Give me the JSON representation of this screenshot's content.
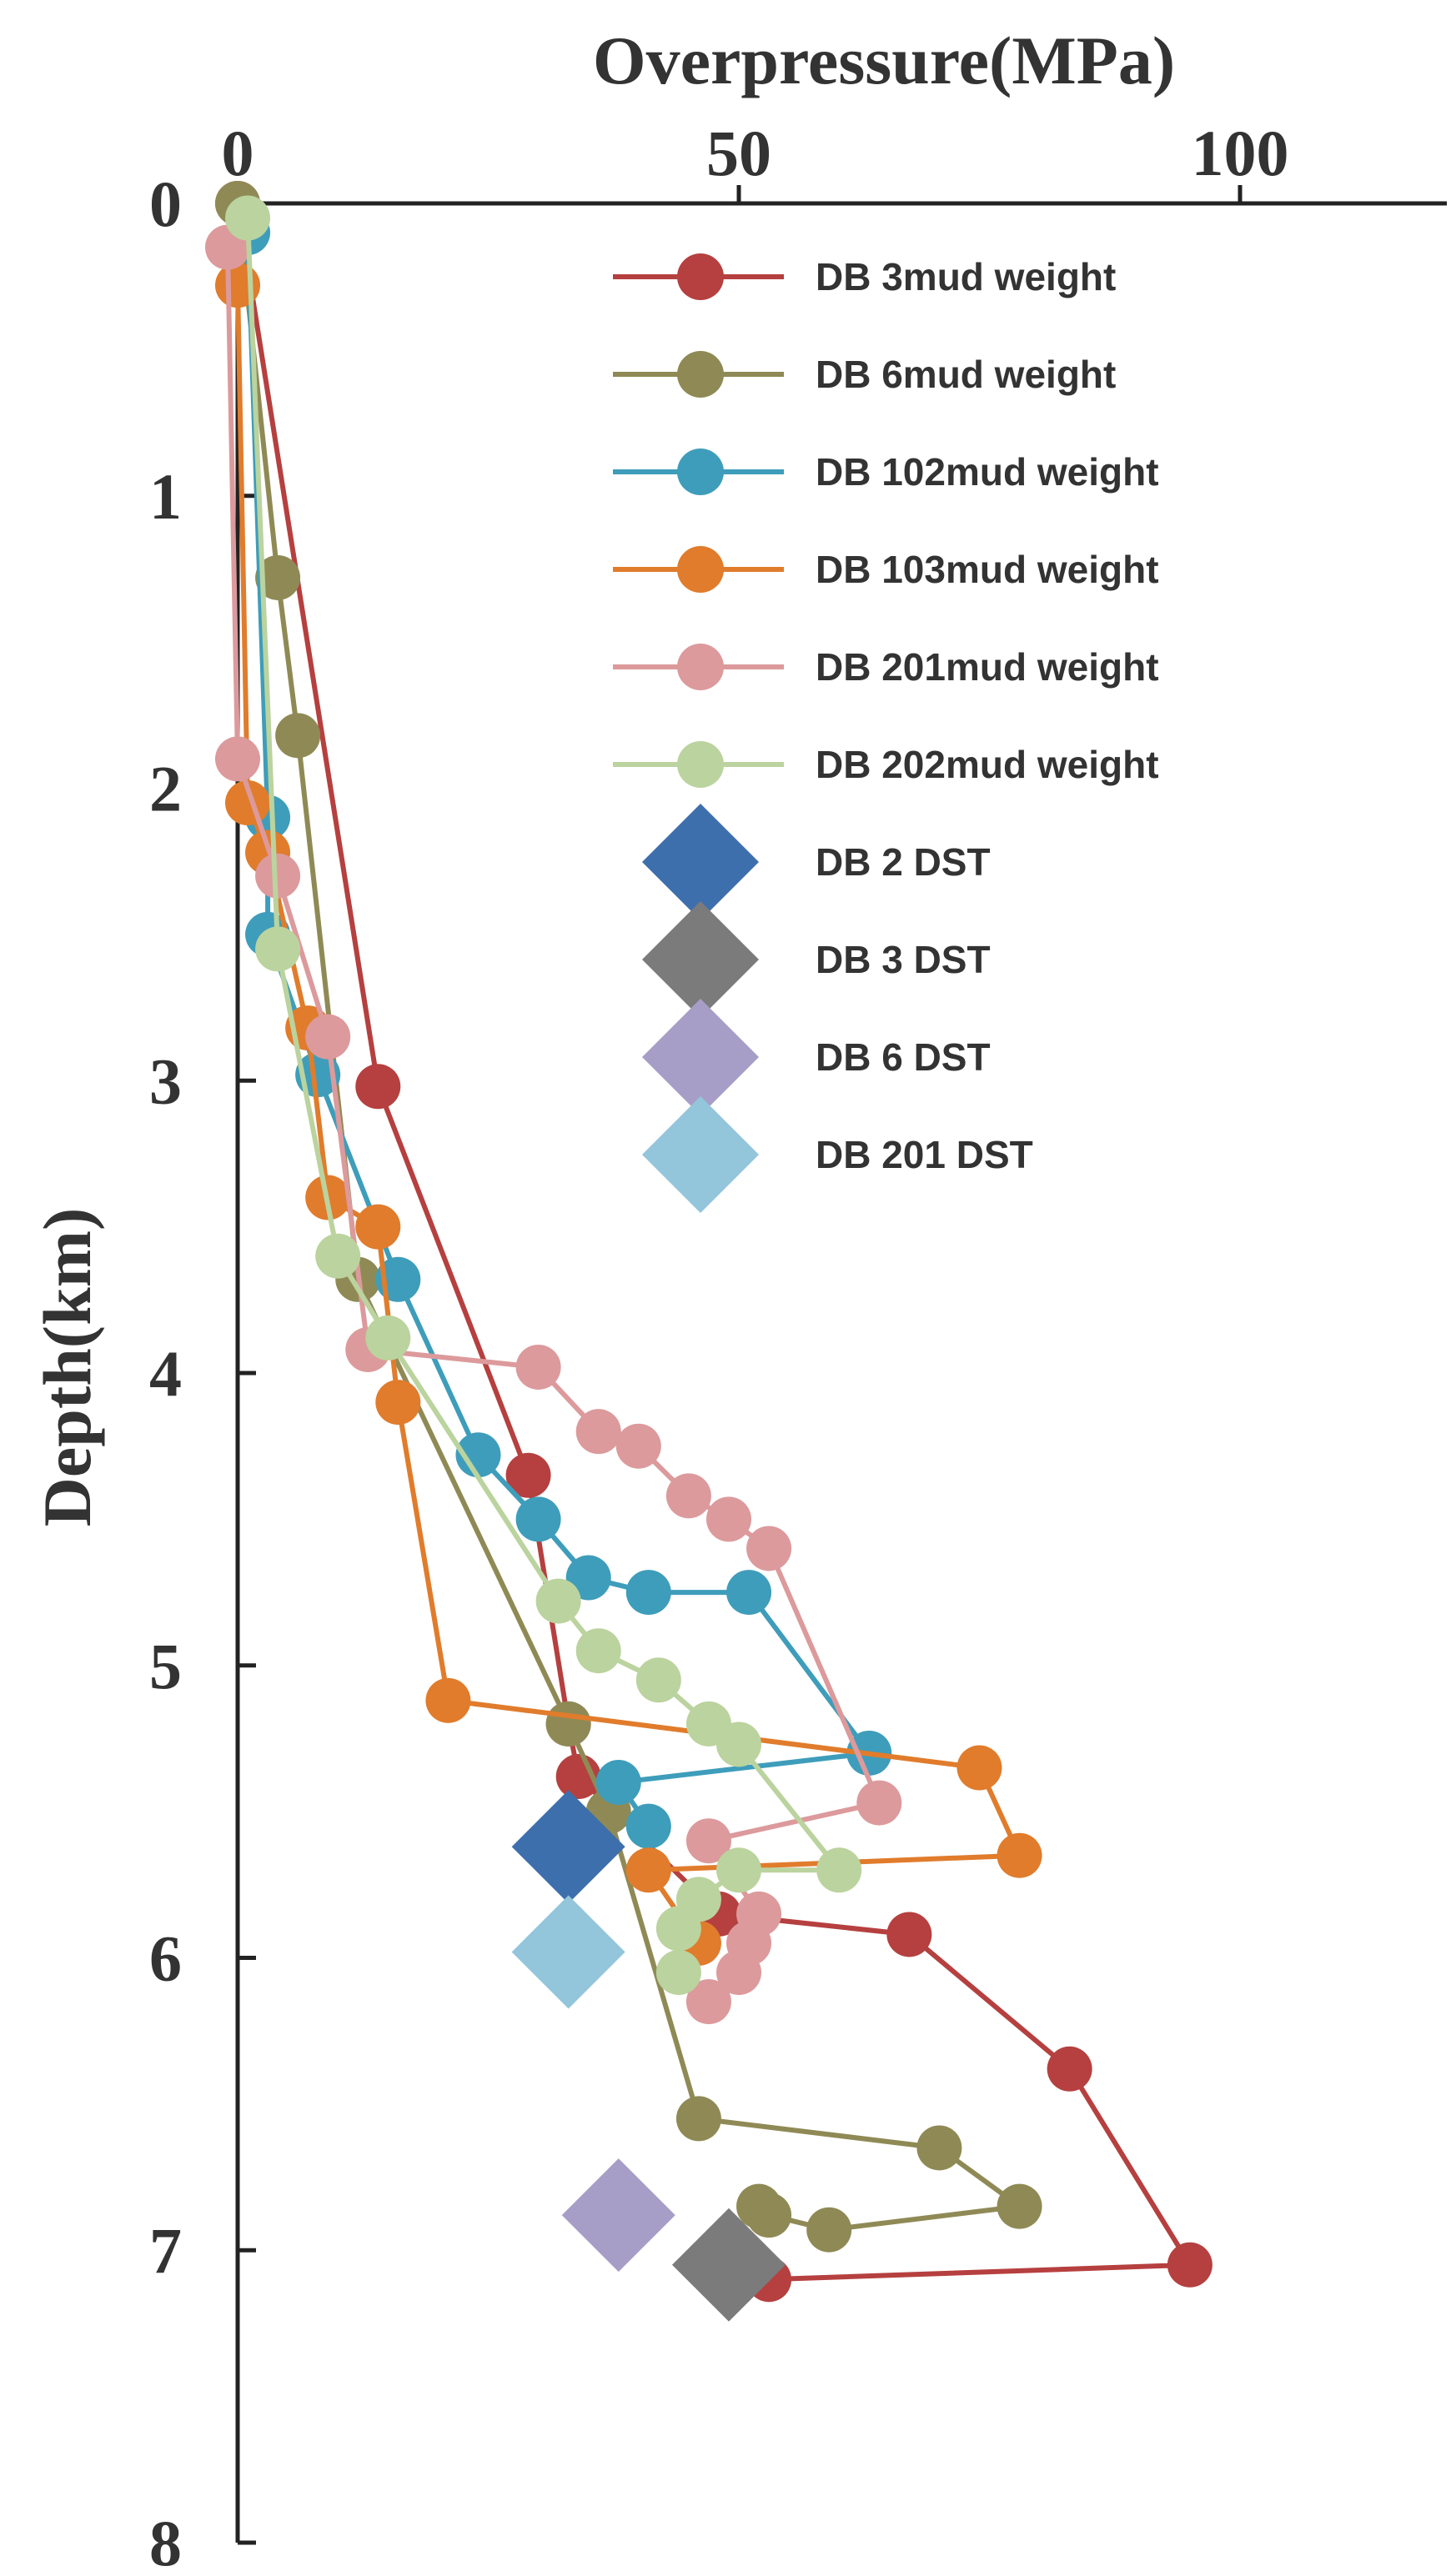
{
  "chart_data": {
    "type": "line",
    "title": "",
    "xlabel": "Overpressure(MPa)",
    "ylabel": "Depth(km)",
    "xlim": [
      -2,
      120
    ],
    "ylim": [
      0,
      8
    ],
    "y_inverted": true,
    "x_axis_position": "top",
    "x_ticks": [
      "0",
      "50",
      "100"
    ],
    "y_ticks": [
      "0",
      "1",
      "2",
      "3",
      "4",
      "5",
      "6",
      "7",
      "8"
    ],
    "grid": false,
    "legend_position": "top-right",
    "series": [
      {
        "name": "DB 3mud weight",
        "marker": "circle",
        "color": "#b5403f",
        "points": [
          [
            0,
            0
          ],
          [
            14,
            3.02
          ],
          [
            29,
            4.35
          ],
          [
            33,
            5.2
          ],
          [
            34,
            5.38
          ],
          [
            48,
            5.85
          ],
          [
            67,
            5.92
          ],
          [
            83,
            6.38
          ],
          [
            95,
            7.05
          ],
          [
            53,
            7.1
          ]
        ]
      },
      {
        "name": "DB 6mud weight",
        "marker": "circle",
        "color": "#8f8a55",
        "points": [
          [
            0,
            0
          ],
          [
            4,
            1.28
          ],
          [
            6,
            1.82
          ],
          [
            12,
            3.68
          ],
          [
            33,
            5.2
          ],
          [
            37,
            5.5
          ],
          [
            46,
            6.55
          ],
          [
            70,
            6.65
          ],
          [
            78,
            6.85
          ],
          [
            59,
            6.93
          ],
          [
            53,
            6.88
          ],
          [
            52,
            6.85
          ]
        ]
      },
      {
        "name": "DB 102mud weight",
        "marker": "circle",
        "color": "#3e9dba",
        "points": [
          [
            1,
            0.1
          ],
          [
            3,
            2.1
          ],
          [
            3,
            2.5
          ],
          [
            8,
            2.98
          ],
          [
            16,
            3.68
          ],
          [
            24,
            4.28
          ],
          [
            30,
            4.5
          ],
          [
            35,
            4.7
          ],
          [
            41,
            4.75
          ],
          [
            51,
            4.75
          ],
          [
            63,
            5.3
          ],
          [
            38,
            5.4
          ],
          [
            41,
            5.55
          ]
        ]
      },
      {
        "name": "DB 103mud weight",
        "marker": "circle",
        "color": "#e07c2c",
        "points": [
          [
            0,
            0.28
          ],
          [
            1,
            2.05
          ],
          [
            3,
            2.22
          ],
          [
            7,
            2.82
          ],
          [
            9,
            3.4
          ],
          [
            14,
            3.5
          ],
          [
            16,
            4.1
          ],
          [
            21,
            5.12
          ],
          [
            74,
            5.35
          ],
          [
            78,
            5.65
          ],
          [
            41,
            5.7
          ],
          [
            46,
            5.95
          ]
        ]
      },
      {
        "name": "DB 201mud weight",
        "marker": "circle",
        "color": "#dc9a9c",
        "points": [
          [
            -1,
            0.15
          ],
          [
            0,
            1.9
          ],
          [
            4,
            2.3
          ],
          [
            9,
            2.85
          ],
          [
            13,
            3.92
          ],
          [
            30,
            3.98
          ],
          [
            36,
            4.2
          ],
          [
            40,
            4.25
          ],
          [
            45,
            4.42
          ],
          [
            49,
            4.5
          ],
          [
            53,
            4.6
          ],
          [
            64,
            5.47
          ],
          [
            47,
            5.6
          ],
          [
            52,
            5.85
          ],
          [
            51,
            5.95
          ],
          [
            50,
            6.05
          ],
          [
            47,
            6.15
          ]
        ]
      },
      {
        "name": "DB 202mud weight",
        "marker": "circle",
        "color": "#bbd39e",
        "points": [
          [
            1,
            0.05
          ],
          [
            4,
            2.55
          ],
          [
            10,
            3.6
          ],
          [
            15,
            3.88
          ],
          [
            32,
            4.78
          ],
          [
            36,
            4.95
          ],
          [
            42,
            5.05
          ],
          [
            47,
            5.2
          ],
          [
            50,
            5.27
          ],
          [
            60,
            5.7
          ],
          [
            50,
            5.7
          ],
          [
            46,
            5.8
          ],
          [
            44,
            5.9
          ],
          [
            44,
            6.05
          ]
        ]
      },
      {
        "name": "DB 2 DST",
        "marker": "diamond",
        "color": "#3e6fad",
        "points": [
          [
            33,
            5.62
          ]
        ]
      },
      {
        "name": "DB 3 DST",
        "marker": "diamond",
        "color": "#7b7b7b",
        "points": [
          [
            49,
            7.05
          ]
        ]
      },
      {
        "name": "DB 6 DST",
        "marker": "diamond",
        "color": "#a79ec7",
        "points": [
          [
            38,
            6.88
          ]
        ]
      },
      {
        "name": "DB 201 DST",
        "marker": "diamond",
        "color": "#93c5db",
        "points": [
          [
            33,
            5.98
          ]
        ]
      }
    ]
  }
}
